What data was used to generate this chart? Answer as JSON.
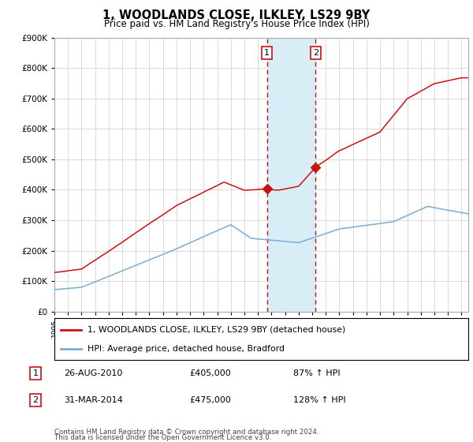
{
  "title": "1, WOODLANDS CLOSE, ILKLEY, LS29 9BY",
  "subtitle": "Price paid vs. HM Land Registry's House Price Index (HPI)",
  "legend_line1": "1, WOODLANDS CLOSE, ILKLEY, LS29 9BY (detached house)",
  "legend_line2": "HPI: Average price, detached house, Bradford",
  "sale1_label": "1",
  "sale1_date": "26-AUG-2010",
  "sale1_price": "£405,000",
  "sale1_hpi": "87% ↑ HPI",
  "sale2_label": "2",
  "sale2_date": "31-MAR-2014",
  "sale2_price": "£475,000",
  "sale2_hpi": "128% ↑ HPI",
  "footer1": "Contains HM Land Registry data © Crown copyright and database right 2024.",
  "footer2": "This data is licensed under the Open Government Licence v3.0.",
  "hpi_color": "#7aadd4",
  "price_color": "#cc1111",
  "vline_color": "#cc1111",
  "shade_color": "#d9edf7",
  "ylim": [
    0,
    900000
  ],
  "yticks": [
    0,
    100000,
    200000,
    300000,
    400000,
    500000,
    600000,
    700000,
    800000,
    900000
  ],
  "sale1_year": 2010.667,
  "sale1_price_val": 405000,
  "sale2_year": 2014.25,
  "sale2_price_val": 475000,
  "xmin": 1995,
  "xmax": 2025.5
}
